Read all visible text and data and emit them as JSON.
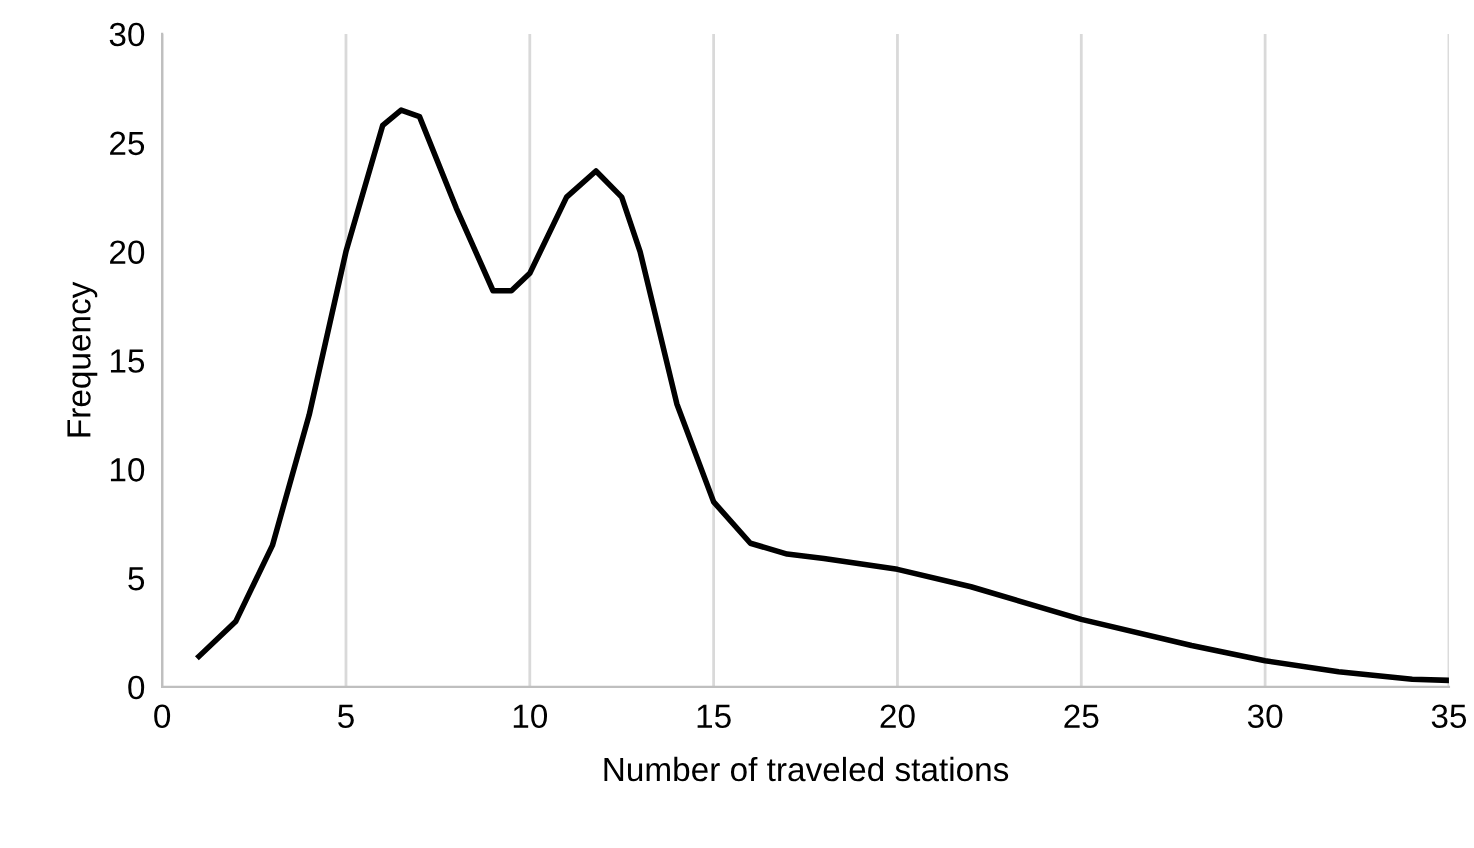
{
  "chart_data": {
    "type": "line",
    "xlabel": "Number of traveled stations",
    "ylabel": "Frequency",
    "x": [
      1,
      2,
      3,
      4,
      5,
      6,
      6.5,
      7,
      8,
      9,
      9.5,
      10,
      11,
      11.8,
      12.5,
      13,
      14,
      15,
      16,
      17,
      18,
      20,
      22,
      25,
      28,
      30,
      32,
      34,
      35
    ],
    "series": [
      {
        "color": "#000000",
        "values": [
          1.4,
          3,
          6.5,
          12.5,
          20,
          25.8,
          26.5,
          26.2,
          22,
          18.2,
          18.2,
          19,
          22.5,
          23.7,
          22.5,
          20,
          13,
          8.5,
          6.6,
          6.1,
          5.9,
          5.4,
          4.6,
          3.1,
          1.9,
          1.2,
          0.7,
          0.35,
          0.3
        ]
      }
    ],
    "xlim": [
      0,
      35
    ],
    "ylim": [
      0,
      30
    ],
    "xticks": [
      0,
      5,
      10,
      15,
      20,
      25,
      30,
      35
    ],
    "yticks": [
      0,
      5,
      10,
      15,
      20,
      25,
      30
    ],
    "grid": "x",
    "marker": "none",
    "line_style": "solid",
    "legend": false
  }
}
